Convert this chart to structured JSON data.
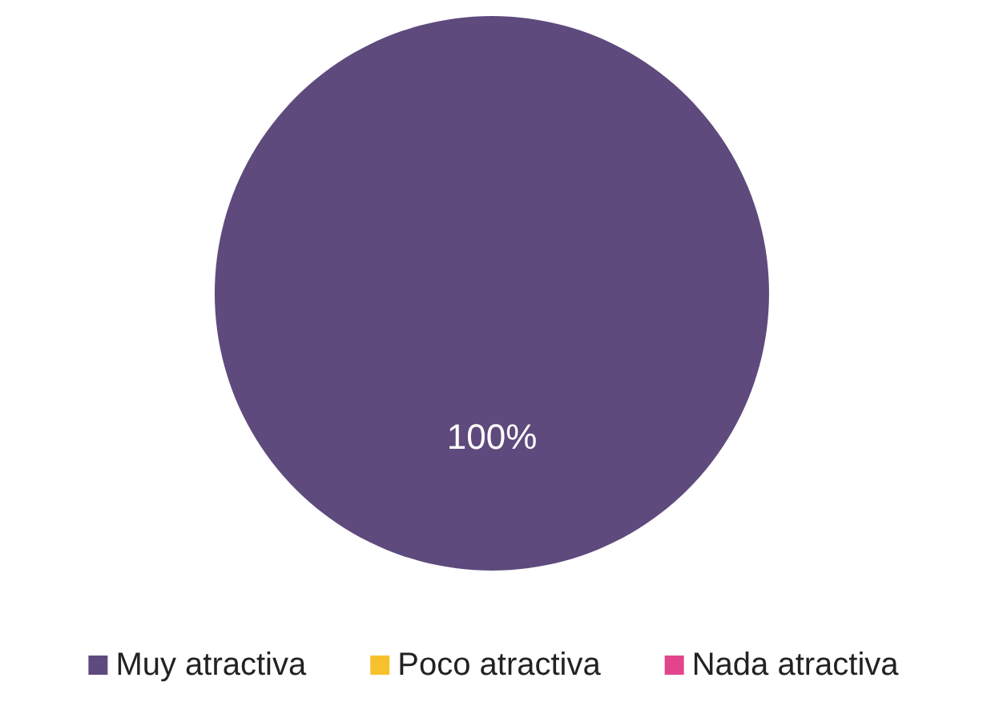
{
  "chart_data": {
    "type": "pie",
    "categories": [
      "Muy atractiva",
      "Poco atractiva",
      "Nada atractiva"
    ],
    "values": [
      100,
      0,
      0
    ],
    "colors": [
      "#5e4a7c",
      "#f7c12d",
      "#e3458d"
    ],
    "value_labels": [
      "100%",
      null,
      null
    ],
    "legend": "bottom"
  }
}
